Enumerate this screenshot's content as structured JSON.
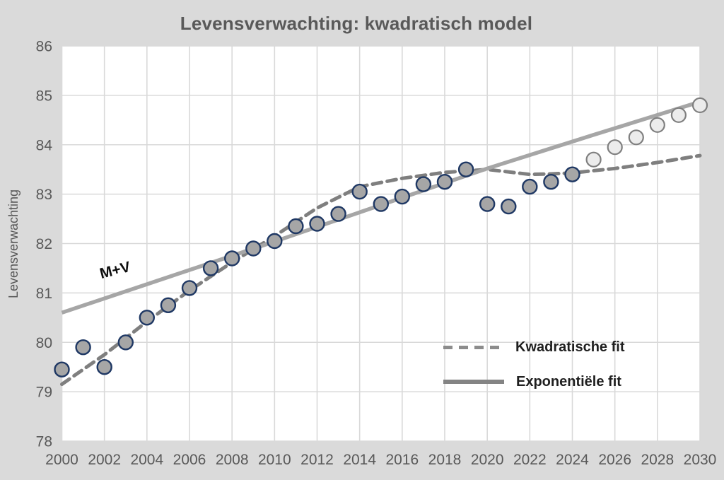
{
  "title": "Levensverwachting: kwadratisch model",
  "y_axis_title": "Levensverwachting",
  "annotation_label": "M+V",
  "legend": {
    "quadratic_label": "Kwadratische fit",
    "exponential_label": "Exponentiële fit"
  },
  "colors": {
    "canvas_bg": "#dadada",
    "plot_bg": "#ffffff",
    "grid": "#d9d9d9",
    "tick_text": "#595959",
    "title_text": "#595959",
    "solid_line": "#a6a6a6",
    "dashed_line": "#7f7f7f",
    "observed_fill": "#a6a6a6",
    "observed_stroke": "#1f3864",
    "forecast_fill": "#ececec",
    "forecast_stroke": "#7f7f7f"
  },
  "chart_data": {
    "type": "scatter",
    "title": "Levensverwachting: kwadratisch model",
    "xlabel": "",
    "ylabel": "Levensverwachting",
    "xlim": [
      2000,
      2030
    ],
    "ylim": [
      78,
      86
    ],
    "x_ticks": [
      2000,
      2002,
      2004,
      2006,
      2008,
      2010,
      2012,
      2014,
      2016,
      2018,
      2020,
      2022,
      2024,
      2026,
      2028,
      2030
    ],
    "y_ticks": [
      78,
      79,
      80,
      81,
      82,
      83,
      84,
      85,
      86
    ],
    "grid": true,
    "legend_position": "inside-right",
    "observed": {
      "years": [
        2000,
        2001,
        2002,
        2003,
        2004,
        2005,
        2006,
        2007,
        2008,
        2009,
        2010,
        2011,
        2012,
        2013,
        2014,
        2015,
        2016,
        2017,
        2018,
        2019,
        2020,
        2021,
        2022,
        2023,
        2024
      ],
      "values": [
        79.45,
        79.9,
        79.5,
        80.0,
        80.5,
        80.75,
        81.1,
        81.5,
        81.7,
        81.9,
        82.05,
        82.35,
        82.4,
        82.6,
        83.05,
        82.8,
        82.95,
        83.2,
        83.25,
        83.5,
        82.8,
        82.75,
        83.15,
        83.25,
        83.4
      ]
    },
    "forecast": {
      "years": [
        2025,
        2026,
        2027,
        2028,
        2029,
        2030
      ],
      "values": [
        83.7,
        83.95,
        84.15,
        84.4,
        84.6,
        84.8
      ]
    },
    "fits": [
      {
        "name": "Kwadratische fit",
        "style": "dashed",
        "points": [
          [
            2000,
            79.15
          ],
          [
            2002,
            79.75
          ],
          [
            2004,
            80.42
          ],
          [
            2006,
            81.05
          ],
          [
            2008,
            81.62
          ],
          [
            2010,
            82.15
          ],
          [
            2012,
            82.72
          ],
          [
            2014,
            83.15
          ],
          [
            2016,
            83.32
          ],
          [
            2018,
            83.44
          ],
          [
            2020,
            83.5
          ],
          [
            2021,
            83.45
          ],
          [
            2022,
            83.4
          ],
          [
            2023,
            83.41
          ],
          [
            2024,
            83.43
          ],
          [
            2026,
            83.52
          ],
          [
            2028,
            83.64
          ],
          [
            2030,
            83.78
          ]
        ]
      },
      {
        "name": "Exponentiële fit",
        "style": "solid",
        "points": [
          [
            2000,
            80.6
          ],
          [
            2005,
            81.32
          ],
          [
            2010,
            82.04
          ],
          [
            2015,
            82.78
          ],
          [
            2020,
            83.52
          ],
          [
            2025,
            84.2
          ],
          [
            2030,
            84.87
          ]
        ]
      }
    ],
    "annotation": {
      "text": "M+V",
      "x": 2003,
      "y": 81.4
    }
  }
}
